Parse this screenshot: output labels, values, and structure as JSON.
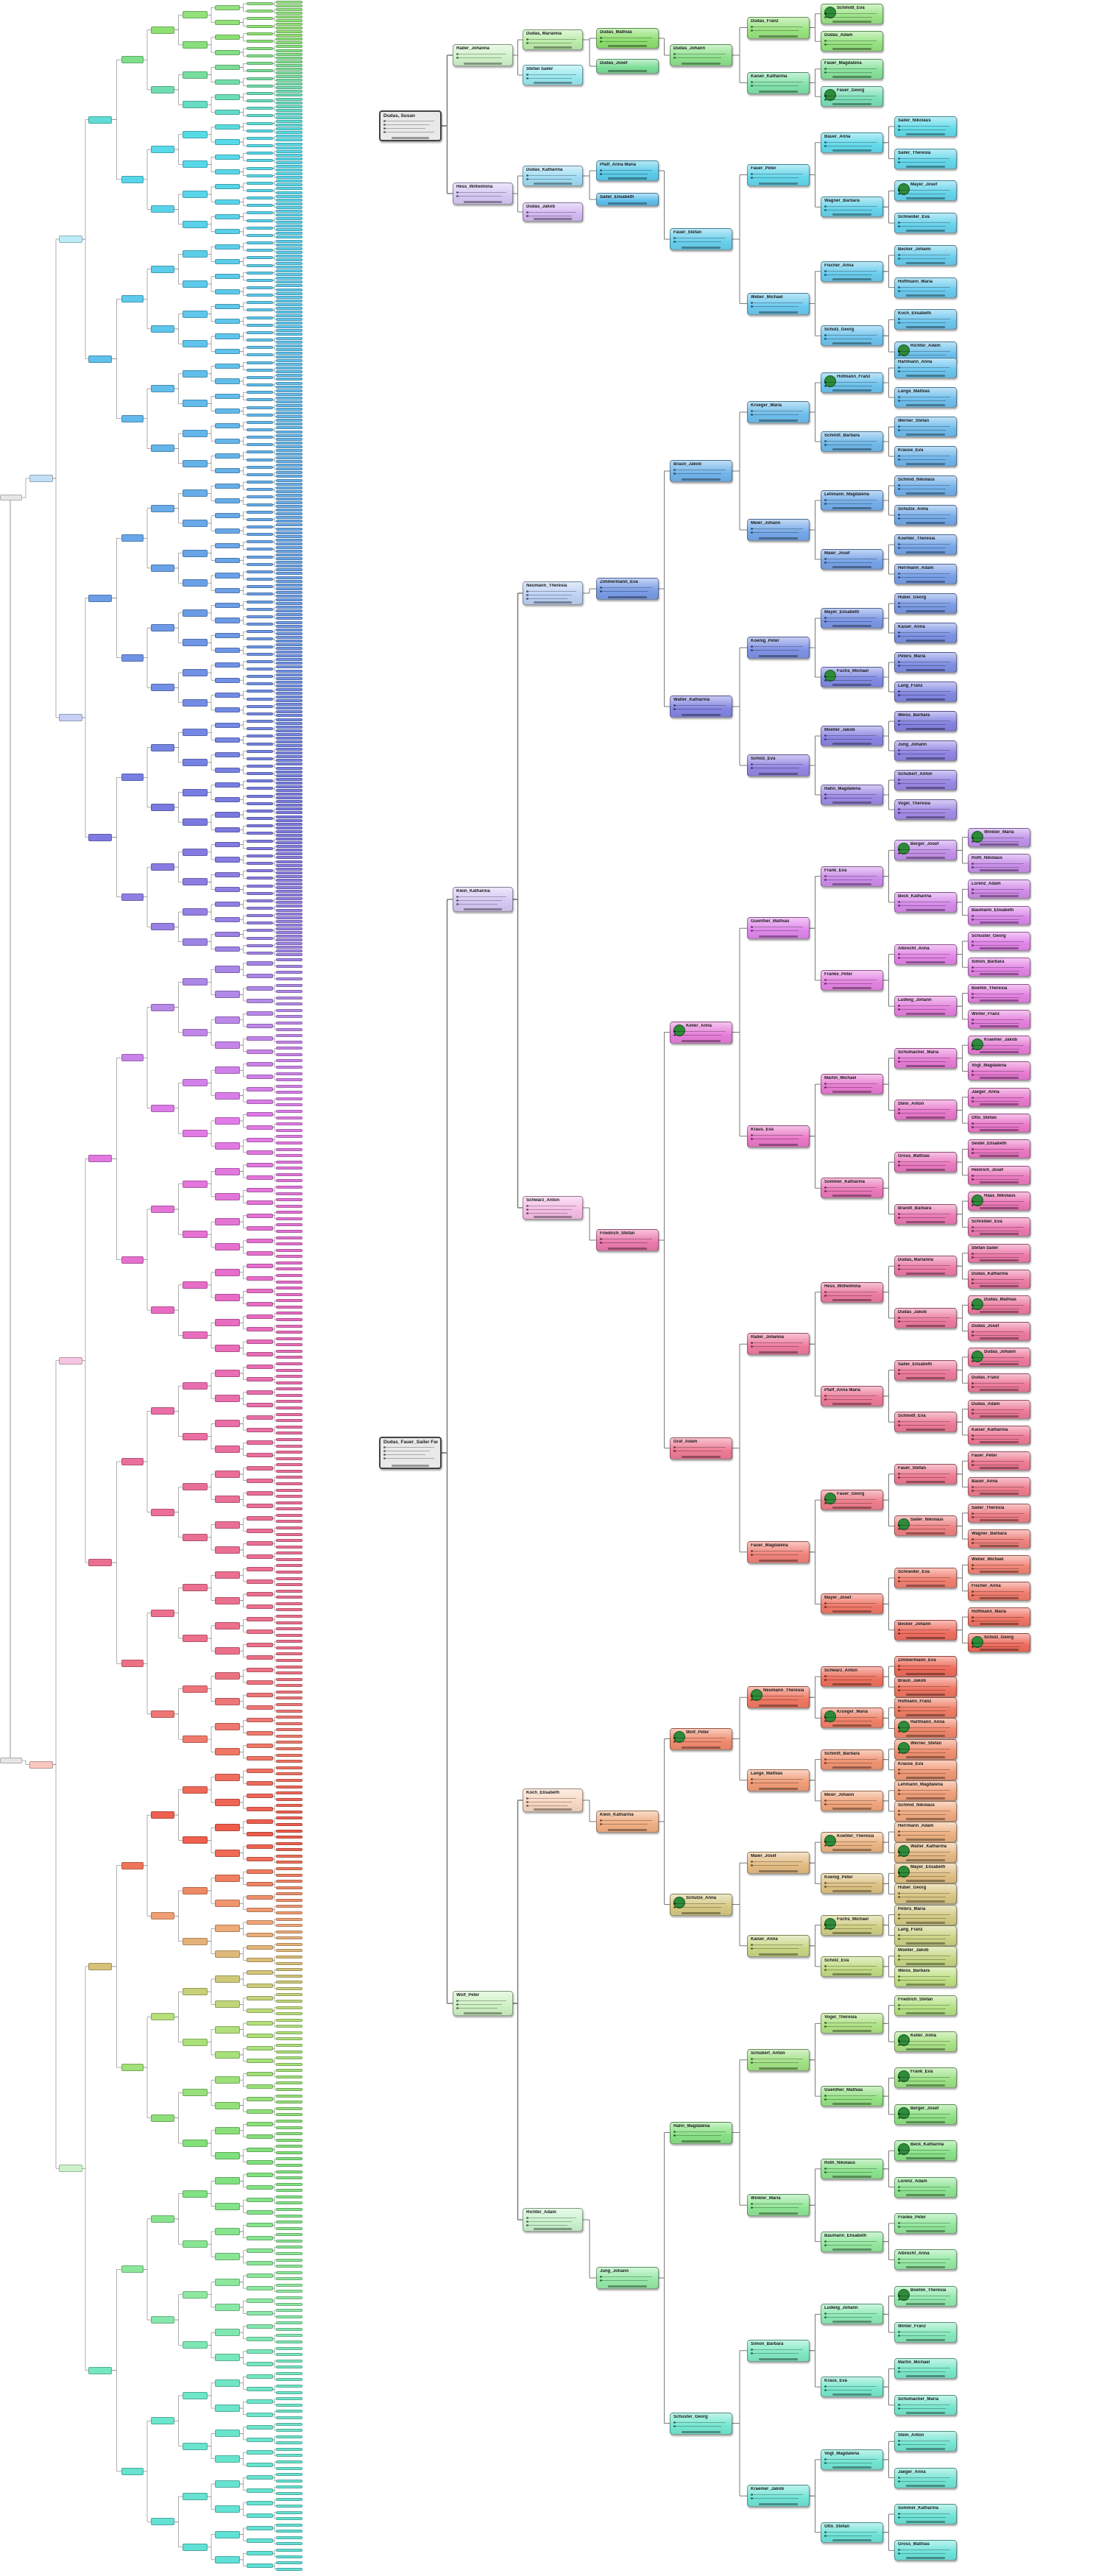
{
  "tree": {
    "title_nodes": [
      {
        "id": "root-top",
        "name": "Dudas, Susan",
        "color": "#e8e8e8"
      },
      {
        "id": "root-main",
        "name": "Dudas_Fauer_Sailer Family",
        "color": "#e8e8e8"
      }
    ],
    "right_labels": [
      "Rader_Johanna",
      "Hess_Wilhelmina",
      "Dudas, Marianna",
      "Stefan Sailer",
      "Dudas_Katharina",
      "Dudas_Jakob",
      "Dudas_Mathias",
      "Dudas_Josef",
      "Pfaff_Anna Maria",
      "Sailer_Elisabeth",
      "Dudas_Johann",
      "Dudas_Franz",
      "Schmidt_Eva",
      "Dudas_Adam",
      "Kaiser_Katharina",
      "Fauer_Magdalena",
      "Fauer_Georg",
      "Fauer_Stefan",
      "Fauer_Peter",
      "Bauer_Anna",
      "Sailer_Nikolaus",
      "Sailer_Theresia",
      "Wagner_Barbara",
      "Mayer_Josef",
      "Schneider_Eva",
      "Weber_Michael",
      "Fischer_Anna",
      "Becker_Johann",
      "Hoffmann_Maria",
      "Schulz_Georg",
      "Koch_Elisabeth",
      "Richter_Adam",
      "Klein_Katharina",
      "Wolf_Peter",
      "Neumann_Theresia",
      "Schwarz_Anton",
      "Zimmermann_Eva",
      "Braun_Jakob",
      "Krueger_Maria",
      "Hofmann_Franz",
      "Hartmann_Anna",
      "Lange_Mathias",
      "Schmitt_Barbara",
      "Werner_Stefan",
      "Krause_Eva",
      "Meier_Johann",
      "Lehmann_Magdalena",
      "Schmid_Nikolaus",
      "Schulze_Anna",
      "Maier_Josef",
      "Koehler_Theresia",
      "Herrmann_Adam",
      "Walter_Katharina",
      "Koenig_Peter",
      "Mayer_Elisabeth",
      "Huber_Georg",
      "Kaiser_Anna",
      "Fuchs_Michael",
      "Peters_Maria",
      "Lang_Franz",
      "Scholz_Eva",
      "Moeller_Jakob",
      "Weiss_Barbara",
      "Jung_Johann",
      "Hahn_Magdalena",
      "Schubert_Anton",
      "Vogel_Theresia",
      "Friedrich_Stefan",
      "Keller_Anna",
      "Guenther_Mathias",
      "Frank_Eva",
      "Berger_Josef",
      "Winkler_Maria",
      "Roth_Nikolaus",
      "Beck_Katharina",
      "Lorenz_Adam",
      "Baumann_Elisabeth",
      "Franke_Peter",
      "Albrecht_Anna",
      "Schuster_Georg",
      "Simon_Barbara",
      "Ludwig_Johann",
      "Boehm_Theresia",
      "Winter_Franz",
      "Kraus_Eva",
      "Martin_Michael",
      "Schumacher_Maria",
      "Kraemer_Jakob",
      "Vogt_Magdalena",
      "Stein_Anton",
      "Jaeger_Anna",
      "Otto_Stefan",
      "Sommer_Katharina",
      "Gross_Mathias",
      "Seidel_Elisabeth",
      "Heinrich_Josef",
      "Brandt_Barbara",
      "Haas_Nikolaus",
      "Schreiber_Eva",
      "Graf_Adam"
    ]
  }
}
